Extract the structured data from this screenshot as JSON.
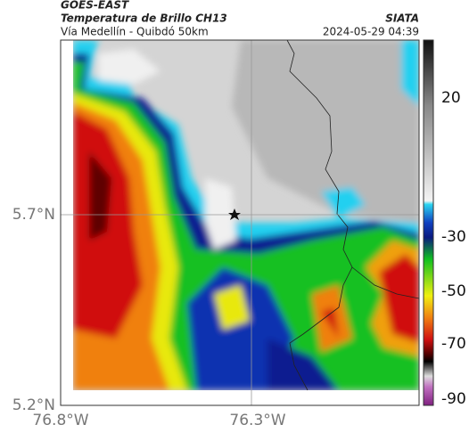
{
  "header": {
    "source": "GOES-EAST",
    "title": "Temperatura de Brillo CH13",
    "subtitle": "Vía Medellín - Quibdó 50km",
    "org": "SIATA",
    "datetime": "2024-05-29 04:39"
  },
  "map": {
    "lat_labels": [
      "5.7°N",
      "5.2°N"
    ],
    "lon_labels": [
      "76.8°W",
      "76.3°W"
    ]
  },
  "colorbar": {
    "ticks": [
      "20",
      "-30",
      "-50",
      "-70",
      "-90"
    ]
  }
}
